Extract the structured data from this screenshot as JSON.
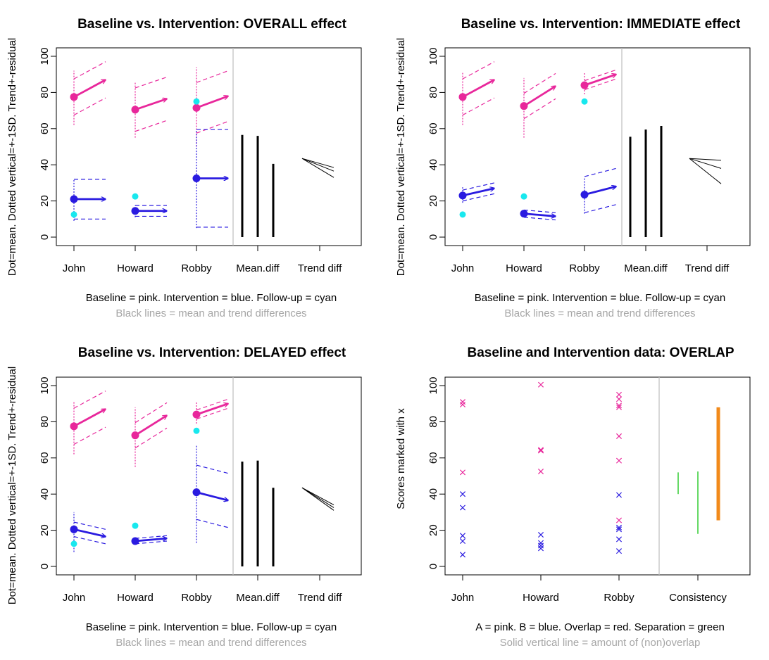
{
  "colors": {
    "baseline": "#e8279b",
    "intervention": "#2a1be0",
    "followup": "#18e8ee",
    "diff": "#000000",
    "consistency_green": "#33cc33",
    "consistency_orange": "#f28a1a",
    "separator": "#bdbdbd"
  },
  "chart_data": [
    {
      "type": "scatter",
      "title": "Baseline vs. Intervention: OVERALL effect",
      "ylabel": "Dot=mean. Dotted vertical=+-1SD. Trend+-residual",
      "caption_line1": "Baseline = pink. Intervention = blue. Follow-up = cyan",
      "caption_line2": "Black lines = mean and trend differences",
      "categories": [
        "John",
        "Howard",
        "Robby",
        "Mean.diff",
        "Trend diff"
      ],
      "ylim": [
        0,
        100
      ],
      "yticks": [
        "0",
        "20",
        "40",
        "60",
        "80",
        "100"
      ],
      "baseline": [
        {
          "mean": 77.5,
          "sd_low": 62,
          "sd_high": 92,
          "trend_end": 87,
          "band": 10
        },
        {
          "mean": 70.5,
          "sd_low": 55,
          "sd_high": 86,
          "trend_end": 76.5,
          "band": 12
        },
        {
          "mean": 71.5,
          "sd_low": 50,
          "sd_high": 94,
          "trend_end": 78,
          "band": 14
        }
      ],
      "intervention": [
        {
          "mean": 21,
          "sd_low": 9,
          "sd_high": 32,
          "trend_end": 21,
          "band": 11
        },
        {
          "mean": 14.5,
          "sd_low": 11,
          "sd_high": 17.5,
          "trend_end": 14.5,
          "band": 3
        },
        {
          "mean": 32.5,
          "sd_low": 5,
          "sd_high": 59,
          "trend_end": 32.5,
          "band": 27
        }
      ],
      "followup": [
        12.5,
        22.5,
        75
      ],
      "mean_diff": [
        56.5,
        56,
        40.5
      ],
      "trend_diff": [
        38.5,
        36.5,
        33
      ]
    },
    {
      "type": "scatter",
      "title": "Baseline vs. Intervention: IMMEDIATE effect",
      "ylabel": "Dot=mean. Dotted vertical=+-1SD. Trend+-residual",
      "caption_line1": "Baseline = pink. Intervention = blue. Follow-up = cyan",
      "caption_line2": "Black lines = mean and trend differences",
      "categories": [
        "John",
        "Howard",
        "Robby",
        "Mean.diff",
        "Trend diff"
      ],
      "ylim": [
        0,
        100
      ],
      "yticks": [
        "0",
        "20",
        "40",
        "60",
        "80",
        "100"
      ],
      "baseline": [
        {
          "mean": 77.5,
          "sd_low": 62,
          "sd_high": 91,
          "trend_end": 87,
          "band": 10
        },
        {
          "mean": 72.5,
          "sd_low": 55,
          "sd_high": 88,
          "trend_end": 83.5,
          "band": 7
        },
        {
          "mean": 84,
          "sd_low": 79,
          "sd_high": 91,
          "trend_end": 90,
          "band": 2.5
        }
      ],
      "intervention": [
        {
          "mean": 23,
          "sd_low": 19,
          "sd_high": 28,
          "trend_end": 27,
          "band": 3
        },
        {
          "mean": 13,
          "sd_low": 11,
          "sd_high": 15,
          "trend_end": 11.5,
          "band": 2
        },
        {
          "mean": 23.5,
          "sd_low": 13,
          "sd_high": 33,
          "trend_end": 28,
          "band": 10
        }
      ],
      "followup": [
        12.5,
        22.5,
        75
      ],
      "mean_diff": [
        55.5,
        59.5,
        61.5
      ],
      "trend_diff": [
        42.5,
        38,
        29.5
      ]
    },
    {
      "type": "scatter",
      "title": "Baseline vs. Intervention: DELAYED effect",
      "ylabel": "Dot=mean. Dotted vertical=+-1SD. Trend+-residual",
      "caption_line1": "Baseline = pink. Intervention = blue. Follow-up = cyan",
      "caption_line2": "Black lines = mean and trend differences",
      "categories": [
        "John",
        "Howard",
        "Robby",
        "Mean.diff",
        "Trend diff"
      ],
      "ylim": [
        0,
        100
      ],
      "yticks": [
        "0",
        "20",
        "40",
        "60",
        "80",
        "100"
      ],
      "baseline": [
        {
          "mean": 77.5,
          "sd_low": 62,
          "sd_high": 91,
          "trend_end": 87,
          "band": 10
        },
        {
          "mean": 72.5,
          "sd_low": 55,
          "sd_high": 88,
          "trend_end": 83.5,
          "band": 7
        },
        {
          "mean": 84,
          "sd_low": 79,
          "sd_high": 91,
          "trend_end": 90,
          "band": 2.5
        }
      ],
      "intervention": [
        {
          "mean": 20.5,
          "sd_low": 8,
          "sd_high": 30,
          "trend_end": 16.5,
          "band": 4
        },
        {
          "mean": 14,
          "sd_low": 12,
          "sd_high": 16,
          "trend_end": 15.5,
          "band": 1.5
        },
        {
          "mean": 41,
          "sd_low": 13,
          "sd_high": 67,
          "trend_end": 36.5,
          "band": 15
        }
      ],
      "followup": [
        12.5,
        22.5,
        75
      ],
      "mean_diff": [
        58,
        58.5,
        43.5
      ],
      "trend_diff": [
        34,
        32.5,
        31
      ]
    },
    {
      "type": "scatter",
      "title": "Baseline and Intervention data: OVERLAP",
      "ylabel": "Scores marked with x",
      "caption_line1": "A = pink. B = blue. Overlap = red. Separation = green",
      "caption_line2": "Solid vertical line = amount of (non)overlap",
      "categories": [
        "John",
        "Howard",
        "Robby",
        "Consistency"
      ],
      "ylim": [
        0,
        100
      ],
      "yticks": [
        "0",
        "20",
        "40",
        "60",
        "80",
        "100"
      ],
      "points_a": [
        [
          91,
          89.5,
          52
        ],
        [
          100.5,
          64.5,
          64,
          52.5
        ],
        [
          95,
          92.5,
          89,
          88,
          72,
          58.5,
          25.5
        ]
      ],
      "points_b": [
        [
          40,
          32.5,
          17,
          14,
          6.5
        ],
        [
          17.5,
          13,
          11.5,
          10
        ],
        [
          39.5,
          21.5,
          20.5,
          15,
          8.5
        ]
      ],
      "consistency": [
        {
          "low": 40,
          "high": 52,
          "color": "#33cc33",
          "width": 1.5
        },
        {
          "low": 18,
          "high": 52.5,
          "color": "#33cc33",
          "width": 1.5
        },
        {
          "low": 25.5,
          "high": 88,
          "color": "#f28a1a",
          "width": 5
        }
      ]
    }
  ]
}
